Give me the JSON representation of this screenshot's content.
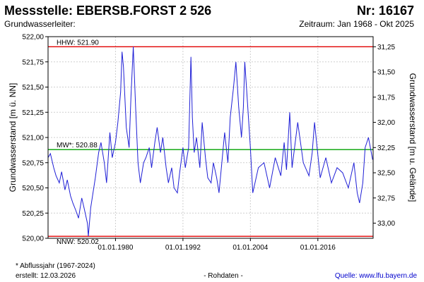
{
  "header": {
    "title_left": "Messstelle: EBERSB.FORST 2 526",
    "title_right": "Nr: 16167",
    "subtitle_left": "Grundwasserleiter:",
    "subtitle_right": "Zeitraum: Jan 1968 - Okt 2025"
  },
  "footer": {
    "note": "* Abflussjahr (1967-2024)",
    "created": "erstellt:  12.03.2026",
    "data_type": "- Rohdaten -",
    "source": "Quelle:  www.lfu.bayern.de"
  },
  "colors": {
    "series": "#1f1fd6",
    "extreme_lines": "#e00000",
    "mean_line": "#00a000",
    "grid": "#cfcfcf"
  },
  "chart_data": {
    "type": "line",
    "ylabel_left": "Grundwasserstand [m ü. NN]",
    "ylabel_right": "Grundwasserstand [m u. Gelände]",
    "ylim": [
      520.0,
      522.0
    ],
    "yticks_left": [
      "520,00",
      "520,25",
      "520,50",
      "520,75",
      "521,00",
      "521,25",
      "521,50",
      "521,75",
      "522,00"
    ],
    "yticks_right": [
      "31,25",
      "31,50",
      "31,75",
      "32,00",
      "32,25",
      "32,50",
      "32,75",
      "33,00"
    ],
    "right_axis_surface": 553.15,
    "x_range": [
      "1968-01-01",
      "2025-10-31"
    ],
    "xticks": [
      {
        "date": "1980-01-01",
        "label": "01.01.1980"
      },
      {
        "date": "1992-01-01",
        "label": "01.01.1992"
      },
      {
        "date": "2004-01-01",
        "label": "01.01.2004"
      },
      {
        "date": "2016-01-01",
        "label": "01.01.2016"
      }
    ],
    "grid": true,
    "reference_lines": [
      {
        "label": "HHW: 521.90",
        "value": 521.9,
        "kind": "max"
      },
      {
        "label": "MW*: 520.88",
        "value": 520.88,
        "kind": "mean"
      },
      {
        "label": "NNW: 520.02",
        "value": 520.02,
        "kind": "min"
      }
    ],
    "series": [
      {
        "points": [
          [
            "1968-01-01",
            520.8
          ],
          [
            "1968-06-01",
            520.84
          ],
          [
            "1969-01-01",
            520.7
          ],
          [
            "1969-06-01",
            520.62
          ],
          [
            "1970-01-01",
            520.55
          ],
          [
            "1970-06-01",
            520.66
          ],
          [
            "1971-01-01",
            520.48
          ],
          [
            "1971-06-01",
            520.58
          ],
          [
            "1972-01-01",
            520.42
          ],
          [
            "1972-06-01",
            520.35
          ],
          [
            "1972-12-01",
            520.28
          ],
          [
            "1973-06-01",
            520.2
          ],
          [
            "1974-01-01",
            520.4
          ],
          [
            "1974-06-01",
            520.3
          ],
          [
            "1975-01-01",
            520.15
          ],
          [
            "1975-03-01",
            520.02
          ],
          [
            "1975-08-01",
            520.3
          ],
          [
            "1976-01-01",
            520.45
          ],
          [
            "1976-06-01",
            520.6
          ],
          [
            "1977-01-01",
            520.85
          ],
          [
            "1977-06-01",
            520.95
          ],
          [
            "1978-01-01",
            520.75
          ],
          [
            "1978-06-01",
            520.55
          ],
          [
            "1979-01-01",
            521.05
          ],
          [
            "1979-06-01",
            520.8
          ],
          [
            "1980-01-01",
            520.95
          ],
          [
            "1980-06-01",
            521.15
          ],
          [
            "1980-12-01",
            521.45
          ],
          [
            "1981-03-01",
            521.85
          ],
          [
            "1981-06-01",
            521.7
          ],
          [
            "1981-12-01",
            521.1
          ],
          [
            "1982-06-01",
            520.9
          ],
          [
            "1982-10-01",
            521.4
          ],
          [
            "1983-03-01",
            521.9
          ],
          [
            "1983-08-01",
            521.3
          ],
          [
            "1984-01-01",
            520.75
          ],
          [
            "1984-06-01",
            520.55
          ],
          [
            "1985-01-01",
            520.75
          ],
          [
            "1985-06-01",
            520.8
          ],
          [
            "1986-01-01",
            520.9
          ],
          [
            "1986-06-01",
            520.7
          ],
          [
            "1987-01-01",
            520.95
          ],
          [
            "1987-06-01",
            521.1
          ],
          [
            "1988-01-01",
            520.85
          ],
          [
            "1988-06-01",
            521.0
          ],
          [
            "1989-01-01",
            520.7
          ],
          [
            "1989-06-01",
            520.55
          ],
          [
            "1990-01-01",
            520.7
          ],
          [
            "1990-06-01",
            520.5
          ],
          [
            "1991-01-01",
            520.45
          ],
          [
            "1991-06-01",
            520.65
          ],
          [
            "1992-01-01",
            520.9
          ],
          [
            "1992-06-01",
            520.7
          ],
          [
            "1993-01-01",
            520.9
          ],
          [
            "1993-06-01",
            521.8
          ],
          [
            "1993-09-01",
            521.2
          ],
          [
            "1994-01-01",
            520.85
          ],
          [
            "1994-06-01",
            521.0
          ],
          [
            "1995-01-01",
            520.7
          ],
          [
            "1995-06-01",
            521.15
          ],
          [
            "1996-01-01",
            520.8
          ],
          [
            "1996-06-01",
            520.6
          ],
          [
            "1997-01-01",
            520.55
          ],
          [
            "1997-06-01",
            520.75
          ],
          [
            "1998-01-01",
            520.6
          ],
          [
            "1998-06-01",
            520.45
          ],
          [
            "1999-01-01",
            520.8
          ],
          [
            "1999-06-01",
            521.05
          ],
          [
            "2000-01-01",
            520.75
          ],
          [
            "2000-06-01",
            521.2
          ],
          [
            "2001-01-01",
            521.5
          ],
          [
            "2001-06-01",
            521.75
          ],
          [
            "2001-12-01",
            521.3
          ],
          [
            "2002-06-01",
            521.0
          ],
          [
            "2002-10-01",
            521.3
          ],
          [
            "2003-01-01",
            521.75
          ],
          [
            "2003-06-01",
            521.4
          ],
          [
            "2004-01-01",
            520.9
          ],
          [
            "2004-06-01",
            520.45
          ],
          [
            "2005-06-01",
            520.7
          ],
          [
            "2006-06-01",
            520.75
          ],
          [
            "2007-06-01",
            520.5
          ],
          [
            "2008-06-01",
            520.8
          ],
          [
            "2009-06-01",
            520.62
          ],
          [
            "2010-01-01",
            520.95
          ],
          [
            "2010-06-01",
            520.68
          ],
          [
            "2011-01-01",
            521.25
          ],
          [
            "2011-06-01",
            520.7
          ],
          [
            "2012-06-01",
            521.15
          ],
          [
            "2013-06-01",
            520.75
          ],
          [
            "2014-06-01",
            520.62
          ],
          [
            "2015-01-01",
            520.85
          ],
          [
            "2015-06-01",
            521.15
          ],
          [
            "2016-06-01",
            520.6
          ],
          [
            "2017-06-01",
            520.8
          ],
          [
            "2018-06-01",
            520.55
          ],
          [
            "2019-06-01",
            520.7
          ],
          [
            "2020-06-01",
            520.65
          ],
          [
            "2021-06-01",
            520.5
          ],
          [
            "2022-06-01",
            520.75
          ],
          [
            "2023-01-01",
            520.45
          ],
          [
            "2023-06-01",
            520.35
          ],
          [
            "2024-01-01",
            520.55
          ],
          [
            "2024-06-01",
            520.9
          ],
          [
            "2025-01-01",
            521.0
          ],
          [
            "2025-10-01",
            520.78
          ]
        ]
      }
    ]
  }
}
